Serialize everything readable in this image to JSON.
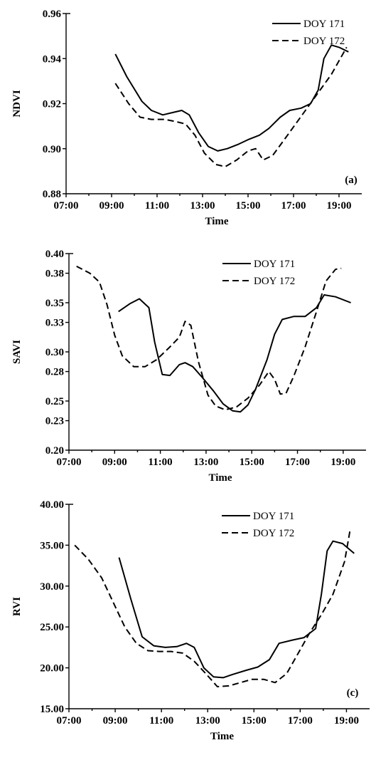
{
  "chart_data": [
    {
      "type": "line",
      "panel_label": "(a)",
      "xlabel": "Time",
      "ylabel": "NDVI",
      "xlim": [
        "07:00",
        "20:00"
      ],
      "ylim": [
        0.88,
        0.96
      ],
      "x_ticks": [
        "07:00",
        "09:00",
        "11:00",
        "13:00",
        "15:00",
        "17:00",
        "19:00"
      ],
      "y_ticks": [
        "0.88",
        "0.90",
        "0.92",
        "0.94",
        "0.96"
      ],
      "grid": false,
      "legend_position": "top-right",
      "series": [
        {
          "name": "DOY 171",
          "style": "solid",
          "points": [
            [
              "09:10",
              0.942
            ],
            [
              "09:40",
              0.932
            ],
            [
              "10:20",
              0.921
            ],
            [
              "10:45",
              0.917
            ],
            [
              "11:15",
              0.915
            ],
            [
              "11:40",
              0.916
            ],
            [
              "12:05",
              0.917
            ],
            [
              "12:25",
              0.915
            ],
            [
              "12:50",
              0.907
            ],
            [
              "13:15",
              0.901
            ],
            [
              "13:40",
              0.899
            ],
            [
              "14:05",
              0.9
            ],
            [
              "14:35",
              0.902
            ],
            [
              "15:00",
              0.904
            ],
            [
              "15:30",
              0.906
            ],
            [
              "15:55",
              0.909
            ],
            [
              "16:25",
              0.914
            ],
            [
              "16:50",
              0.917
            ],
            [
              "17:20",
              0.918
            ],
            [
              "17:45",
              0.92
            ],
            [
              "18:05",
              0.926
            ],
            [
              "18:20",
              0.94
            ],
            [
              "18:40",
              0.946
            ],
            [
              "19:00",
              0.945
            ],
            [
              "19:25",
              0.943
            ]
          ]
        },
        {
          "name": "DOY 172",
          "style": "dashed",
          "points": [
            [
              "09:10",
              0.929
            ],
            [
              "09:45",
              0.92
            ],
            [
              "10:15",
              0.914
            ],
            [
              "10:45",
              0.913
            ],
            [
              "11:20",
              0.913
            ],
            [
              "11:50",
              0.912
            ],
            [
              "12:15",
              0.911
            ],
            [
              "12:40",
              0.906
            ],
            [
              "13:05",
              0.898
            ],
            [
              "13:35",
              0.893
            ],
            [
              "14:00",
              0.892
            ],
            [
              "14:30",
              0.895
            ],
            [
              "15:00",
              0.899
            ],
            [
              "15:20",
              0.9
            ],
            [
              "15:40",
              0.895
            ],
            [
              "16:05",
              0.897
            ],
            [
              "16:40",
              0.905
            ],
            [
              "17:10",
              0.912
            ],
            [
              "17:40",
              0.919
            ],
            [
              "18:10",
              0.926
            ],
            [
              "18:40",
              0.933
            ],
            [
              "19:20",
              0.945
            ]
          ]
        }
      ]
    },
    {
      "type": "line",
      "panel_label": "",
      "xlabel": "Time",
      "ylabel": "SAVI",
      "xlim": [
        "07:00",
        "20:00"
      ],
      "ylim": [
        0.2,
        0.4
      ],
      "x_ticks": [
        "07:00",
        "09:00",
        "11:00",
        "13:00",
        "15:00",
        "17:00",
        "19:00"
      ],
      "y_ticks": [
        "0.20",
        "0.23",
        "0.25",
        "0.28",
        "0.30",
        "0.33",
        "0.35",
        "0.38",
        "0.40"
      ],
      "grid": false,
      "legend_position": "top-right",
      "series": [
        {
          "name": "DOY 171",
          "style": "solid",
          "points": [
            [
              "09:10",
              0.341
            ],
            [
              "09:40",
              0.349
            ],
            [
              "10:05",
              0.354
            ],
            [
              "10:30",
              0.345
            ],
            [
              "10:45",
              0.31
            ],
            [
              "11:05",
              0.277
            ],
            [
              "11:25",
              0.276
            ],
            [
              "11:50",
              0.287
            ],
            [
              "12:05",
              0.289
            ],
            [
              "12:25",
              0.285
            ],
            [
              "12:50",
              0.274
            ],
            [
              "13:20",
              0.26
            ],
            [
              "13:45",
              0.247
            ],
            [
              "14:10",
              0.24
            ],
            [
              "14:30",
              0.239
            ],
            [
              "14:50",
              0.246
            ],
            [
              "15:10",
              0.262
            ],
            [
              "15:40",
              0.292
            ],
            [
              "16:00",
              0.318
            ],
            [
              "16:20",
              0.333
            ],
            [
              "16:50",
              0.336
            ],
            [
              "17:20",
              0.336
            ],
            [
              "17:50",
              0.345
            ],
            [
              "18:10",
              0.358
            ],
            [
              "18:40",
              0.356
            ],
            [
              "19:20",
              0.35
            ]
          ]
        },
        {
          "name": "DOY 172",
          "style": "dashed",
          "points": [
            [
              "07:20",
              0.387
            ],
            [
              "07:55",
              0.38
            ],
            [
              "08:20",
              0.371
            ],
            [
              "08:40",
              0.348
            ],
            [
              "09:00",
              0.317
            ],
            [
              "09:20",
              0.296
            ],
            [
              "09:50",
              0.285
            ],
            [
              "10:20",
              0.285
            ],
            [
              "10:50",
              0.292
            ],
            [
              "11:25",
              0.305
            ],
            [
              "11:50",
              0.315
            ],
            [
              "12:05",
              0.331
            ],
            [
              "12:20",
              0.327
            ],
            [
              "12:40",
              0.29
            ],
            [
              "13:05",
              0.256
            ],
            [
              "13:25",
              0.245
            ],
            [
              "13:50",
              0.241
            ],
            [
              "14:20",
              0.244
            ],
            [
              "14:50",
              0.253
            ],
            [
              "15:20",
              0.266
            ],
            [
              "15:45",
              0.28
            ],
            [
              "16:00",
              0.272
            ],
            [
              "16:15",
              0.257
            ],
            [
              "16:30",
              0.258
            ],
            [
              "16:50",
              0.275
            ],
            [
              "17:20",
              0.305
            ],
            [
              "17:50",
              0.341
            ],
            [
              "18:15",
              0.372
            ],
            [
              "18:40",
              0.384
            ],
            [
              "18:55",
              0.385
            ]
          ]
        }
      ]
    },
    {
      "type": "line",
      "panel_label": "(c)",
      "xlabel": "Time",
      "ylabel": "RVI",
      "xlim": [
        "07:00",
        "20:00"
      ],
      "ylim": [
        15.0,
        40.0
      ],
      "x_ticks": [
        "07:00",
        "09:00",
        "11:00",
        "13:00",
        "15:00",
        "17:00",
        "19:00"
      ],
      "y_ticks": [
        "15.00",
        "20.00",
        "25.00",
        "30.00",
        "35.00",
        "40.00"
      ],
      "grid": false,
      "legend_position": "top-right",
      "series": [
        {
          "name": "DOY 171",
          "style": "solid",
          "points": [
            [
              "09:10",
              33.5
            ],
            [
              "09:40",
              28.5
            ],
            [
              "10:10",
              23.8
            ],
            [
              "10:40",
              22.7
            ],
            [
              "11:10",
              22.5
            ],
            [
              "11:40",
              22.6
            ],
            [
              "12:05",
              23.0
            ],
            [
              "12:25",
              22.5
            ],
            [
              "12:50",
              20.0
            ],
            [
              "13:15",
              18.9
            ],
            [
              "13:40",
              18.8
            ],
            [
              "14:05",
              19.2
            ],
            [
              "14:40",
              19.7
            ],
            [
              "15:10",
              20.1
            ],
            [
              "15:40",
              21.0
            ],
            [
              "16:05",
              23.0
            ],
            [
              "16:40",
              23.4
            ],
            [
              "17:10",
              23.7
            ],
            [
              "17:40",
              24.8
            ],
            [
              "17:55",
              29.0
            ],
            [
              "18:10",
              34.3
            ],
            [
              "18:25",
              35.5
            ],
            [
              "18:50",
              35.2
            ],
            [
              "19:20",
              34.0
            ]
          ]
        },
        {
          "name": "DOY 172",
          "style": "dashed",
          "points": [
            [
              "07:15",
              35.0
            ],
            [
              "07:50",
              33.3
            ],
            [
              "08:25",
              31.0
            ],
            [
              "08:55",
              28.0
            ],
            [
              "09:25",
              25.0
            ],
            [
              "09:55",
              23.0
            ],
            [
              "10:25",
              22.1
            ],
            [
              "10:55",
              22.0
            ],
            [
              "11:25",
              22.0
            ],
            [
              "11:55",
              21.8
            ],
            [
              "12:25",
              20.8
            ],
            [
              "12:55",
              19.3
            ],
            [
              "13:25",
              17.7
            ],
            [
              "13:55",
              17.8
            ],
            [
              "14:25",
              18.2
            ],
            [
              "14:55",
              18.6
            ],
            [
              "15:25",
              18.6
            ],
            [
              "15:55",
              18.2
            ],
            [
              "16:25",
              19.3
            ],
            [
              "16:55",
              21.8
            ],
            [
              "17:25",
              24.3
            ],
            [
              "17:55",
              26.5
            ],
            [
              "18:25",
              29.0
            ],
            [
              "18:55",
              33.0
            ],
            [
              "19:10",
              37.0
            ]
          ]
        }
      ]
    }
  ]
}
